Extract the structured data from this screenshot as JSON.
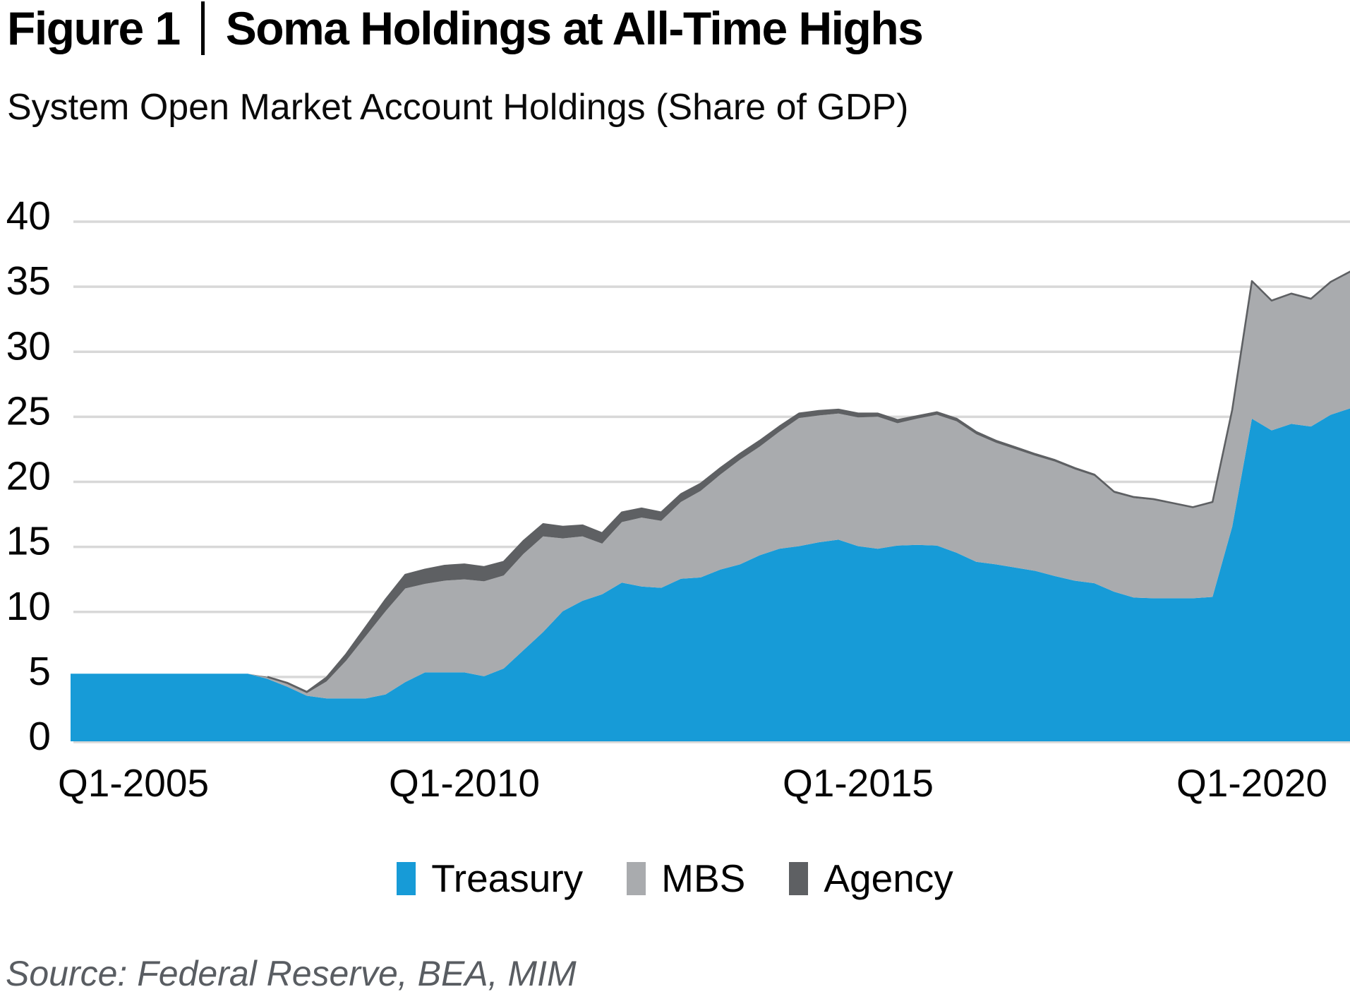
{
  "header": {
    "figure_label": "Figure 1",
    "title": "Soma Holdings at All-Time Highs",
    "subtitle": "System Open Market Account Holdings (Share of GDP)"
  },
  "source": {
    "text": "Source: Federal Reserve, BEA, MIM"
  },
  "chart_data": {
    "type": "area",
    "stacked": true,
    "grid": "horizontal",
    "legend_position": "bottom",
    "ylim": [
      0,
      40
    ],
    "y_ticks": [
      0,
      5,
      10,
      15,
      20,
      25,
      30,
      35,
      40
    ],
    "x_tick_labels": [
      "Q1-2005",
      "Q1-2010",
      "Q1-2015",
      "Q1-2020"
    ],
    "x_tick_indices": [
      0,
      20,
      40,
      60
    ],
    "x": [
      "Q1-2005",
      "Q2-2005",
      "Q3-2005",
      "Q4-2005",
      "Q1-2006",
      "Q2-2006",
      "Q3-2006",
      "Q4-2006",
      "Q1-2007",
      "Q2-2007",
      "Q3-2007",
      "Q4-2007",
      "Q1-2008",
      "Q2-2008",
      "Q3-2008",
      "Q4-2008",
      "Q1-2009",
      "Q2-2009",
      "Q3-2009",
      "Q4-2009",
      "Q1-2010",
      "Q2-2010",
      "Q3-2010",
      "Q4-2010",
      "Q1-2011",
      "Q2-2011",
      "Q3-2011",
      "Q4-2011",
      "Q1-2012",
      "Q2-2012",
      "Q3-2012",
      "Q4-2012",
      "Q1-2013",
      "Q2-2013",
      "Q3-2013",
      "Q4-2013",
      "Q1-2014",
      "Q2-2014",
      "Q3-2014",
      "Q4-2014",
      "Q1-2015",
      "Q2-2015",
      "Q3-2015",
      "Q4-2015",
      "Q1-2016",
      "Q2-2016",
      "Q3-2016",
      "Q4-2016",
      "Q1-2017",
      "Q2-2017",
      "Q3-2017",
      "Q4-2017",
      "Q1-2018",
      "Q2-2018",
      "Q3-2018",
      "Q4-2018",
      "Q1-2019",
      "Q2-2019",
      "Q3-2019",
      "Q4-2019",
      "Q1-2020",
      "Q2-2020",
      "Q3-2020",
      "Q4-2020",
      "Q1-2021",
      "Q2-2021"
    ],
    "series": [
      {
        "name": "Treasury",
        "color": "#179BD7",
        "values": [
          5.2,
          5.2,
          5.2,
          5.2,
          5.2,
          5.2,
          5.2,
          5.2,
          5.2,
          5.2,
          4.8,
          4.2,
          3.5,
          3.3,
          3.3,
          3.3,
          3.6,
          4.55,
          5.3,
          5.3,
          5.3,
          5.0,
          5.6,
          7.0,
          8.4,
          10.0,
          10.8,
          11.3,
          12.2,
          11.9,
          11.8,
          12.5,
          12.6,
          13.2,
          13.6,
          14.3,
          14.8,
          15.0,
          15.3,
          15.5,
          15.0,
          14.8,
          15.05,
          15.1,
          15.05,
          14.5,
          13.8,
          13.6,
          13.35,
          13.1,
          12.7,
          12.35,
          12.15,
          11.5,
          11.05,
          11.0,
          11.0,
          11.0,
          11.1,
          16.5,
          24.8,
          23.9,
          24.4,
          24.2,
          25.1,
          25.6
        ]
      },
      {
        "name": "MBS",
        "color": "#A9ABAE",
        "values": [
          0,
          0,
          0,
          0,
          0,
          0,
          0,
          0,
          0,
          0,
          0.1,
          0.2,
          0.2,
          1.3,
          2.9,
          4.8,
          6.4,
          7.2,
          6.8,
          7.05,
          7.15,
          7.3,
          7.15,
          7.4,
          7.35,
          5.6,
          4.95,
          3.9,
          4.65,
          5.3,
          5.15,
          5.9,
          6.65,
          7.3,
          8.05,
          8.35,
          9.0,
          9.85,
          9.75,
          9.7,
          9.9,
          10.15,
          9.4,
          9.7,
          10.05,
          10.1,
          9.8,
          9.35,
          9.1,
          8.85,
          8.8,
          8.55,
          8.25,
          7.6,
          7.65,
          7.55,
          7.25,
          6.95,
          7.25,
          8.95,
          10.55,
          9.95,
          10.0,
          9.8,
          10.2,
          10.5
        ]
      },
      {
        "name": "Agency",
        "color": "#5E6063",
        "values": [
          0,
          0,
          0,
          0,
          0,
          0,
          0,
          0,
          0,
          0,
          0.05,
          0.1,
          0.1,
          0.3,
          0.5,
          0.7,
          0.9,
          1.05,
          1.1,
          1.15,
          1.15,
          1.1,
          1.05,
          1.0,
          0.95,
          0.9,
          0.85,
          0.8,
          0.75,
          0.7,
          0.65,
          0.6,
          0.55,
          0.5,
          0.45,
          0.45,
          0.4,
          0.35,
          0.35,
          0.3,
          0.3,
          0.25,
          0.25,
          0.2,
          0.2,
          0.2,
          0.18,
          0.16,
          0.15,
          0.13,
          0.12,
          0.11,
          0.1,
          0.09,
          0.08,
          0.07,
          0.06,
          0.05,
          0.05,
          0.04,
          0.03,
          0.03,
          0.02,
          0.02,
          0.02,
          0.02
        ]
      }
    ],
    "title": "Figure 1 | Soma Holdings at All-Time Highs",
    "xlabel": "",
    "ylabel": "Share of GDP (%)"
  }
}
